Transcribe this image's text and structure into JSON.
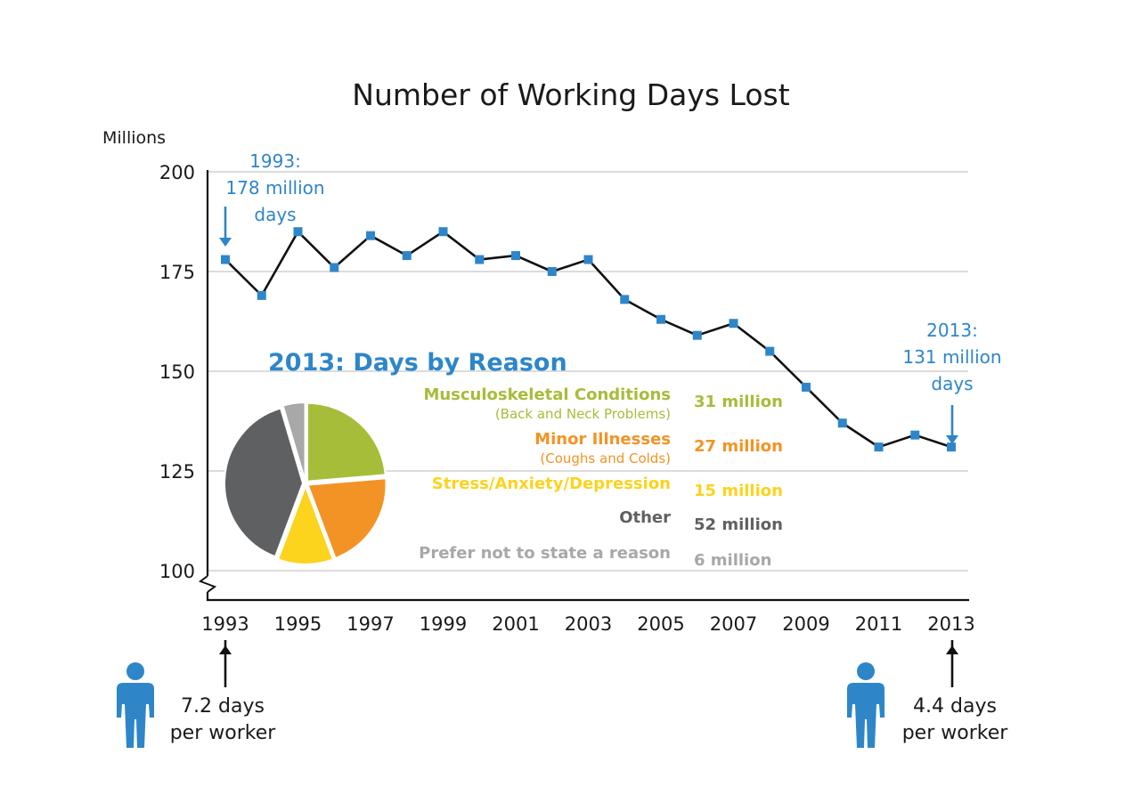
{
  "chart_data": [
    {
      "type": "line",
      "title": "Number of Working Days Lost",
      "ylabel": "Millions",
      "xlabel": "",
      "ylim": [
        100,
        200
      ],
      "y_axis_broken": true,
      "yticks": [
        100,
        125,
        150,
        175,
        200
      ],
      "xticks": [
        "1993",
        "1995",
        "1997",
        "1999",
        "2001",
        "2003",
        "2005",
        "2007",
        "2009",
        "2011",
        "2013"
      ],
      "grid": true,
      "marker": "square",
      "colors": {
        "line": "#111111",
        "marker": "#2e86c9",
        "annotation": "#2e86c9"
      },
      "x": [
        1993,
        1994,
        1995,
        1996,
        1997,
        1998,
        1999,
        2000,
        2001,
        2002,
        2003,
        2004,
        2005,
        2006,
        2007,
        2008,
        2009,
        2010,
        2011,
        2012,
        2013
      ],
      "series": [
        {
          "values": [
            178,
            169,
            185,
            176,
            184,
            179,
            185,
            178,
            179,
            175,
            178,
            168,
            163,
            159,
            162,
            155,
            146,
            137,
            131,
            134,
            131
          ]
        }
      ],
      "annotations": [
        {
          "x": 1993,
          "lines": [
            "1993:",
            "178 million",
            "days"
          ]
        },
        {
          "x": 2013,
          "lines": [
            "2013:",
            "131 million",
            "days"
          ]
        }
      ],
      "footnotes": [
        {
          "x": 1993,
          "lines": [
            "7.2 days",
            "per worker"
          ]
        },
        {
          "x": 2013,
          "lines": [
            "4.4 days",
            "per worker"
          ]
        }
      ]
    },
    {
      "type": "pie",
      "title": "2013: Days by Reason",
      "slices": [
        {
          "name": "Musculoskeletal Conditions",
          "sub": "(Back and Neck Problems)",
          "value": 31,
          "label": "31 million",
          "color": "#a6bd3a"
        },
        {
          "name": "Minor Illnesses",
          "sub": "(Coughs and Colds)",
          "value": 27,
          "label": "27 million",
          "color": "#f39325"
        },
        {
          "name": "Stress/Anxiety/Depression",
          "sub": "",
          "value": 15,
          "label": "15 million",
          "color": "#fcd31d"
        },
        {
          "name": "Other",
          "sub": "",
          "value": 52,
          "label": "52 million",
          "color": "#5f6062"
        },
        {
          "name": "Prefer not to state a reason",
          "sub": "",
          "value": 6,
          "label": "6 million",
          "color": "#a8a8a8"
        }
      ]
    }
  ]
}
